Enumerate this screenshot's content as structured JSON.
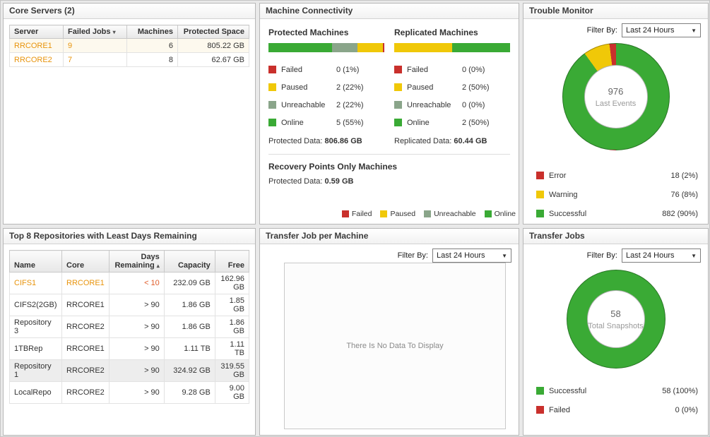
{
  "filter": {
    "label": "Filter By:",
    "value": "Last 24 Hours"
  },
  "core_servers": {
    "title": "Core Servers (2)",
    "headers": {
      "server": "Server",
      "failed_jobs": "Failed Jobs",
      "machines": "Machines",
      "protected_space": "Protected Space"
    },
    "rows": [
      {
        "server": "RRCORE1",
        "failed_jobs": "9",
        "machines": "6",
        "protected_space": "805.22 GB"
      },
      {
        "server": "RRCORE2",
        "failed_jobs": "7",
        "machines": "8",
        "protected_space": "62.67 GB"
      }
    ]
  },
  "machine_connectivity": {
    "title": "Machine Connectivity",
    "protected": {
      "heading": "Protected Machines",
      "bar": [
        {
          "pct": 55,
          "color": "#3aaa35"
        },
        {
          "pct": 22,
          "color": "#8aa58a"
        },
        {
          "pct": 22,
          "color": "#f0c808"
        },
        {
          "pct": 1,
          "color": "#c9302c"
        }
      ],
      "legend": [
        {
          "label": "Failed",
          "value": "0 (1%)",
          "color": "#c9302c"
        },
        {
          "label": "Paused",
          "value": "2 (22%)",
          "color": "#f0c808"
        },
        {
          "label": "Unreachable",
          "value": "2 (22%)",
          "color": "#8aa58a"
        },
        {
          "label": "Online",
          "value": "5 (55%)",
          "color": "#3aaa35"
        }
      ],
      "data_label": "Protected Data: ",
      "data_value": "806.86 GB"
    },
    "replicated": {
      "heading": "Replicated Machines",
      "bar": [
        {
          "pct": 50,
          "color": "#f0c808"
        },
        {
          "pct": 50,
          "color": "#3aaa35"
        }
      ],
      "legend": [
        {
          "label": "Failed",
          "value": "0 (0%)",
          "color": "#c9302c"
        },
        {
          "label": "Paused",
          "value": "2 (50%)",
          "color": "#f0c808"
        },
        {
          "label": "Unreachable",
          "value": "0 (0%)",
          "color": "#8aa58a"
        },
        {
          "label": "Online",
          "value": "2 (50%)",
          "color": "#3aaa35"
        }
      ],
      "data_label": "Replicated Data: ",
      "data_value": "60.44 GB"
    },
    "recovery_points": {
      "heading": "Recovery Points Only Machines",
      "data_label": "Protected Data: ",
      "data_value": "0.59 GB"
    },
    "bottom_legend": [
      {
        "label": "Failed",
        "color": "#c9302c"
      },
      {
        "label": "Paused",
        "color": "#f0c808"
      },
      {
        "label": "Unreachable",
        "color": "#8aa58a"
      },
      {
        "label": "Online",
        "color": "#3aaa35"
      }
    ]
  },
  "trouble_monitor": {
    "title": "Trouble Monitor",
    "donut": {
      "center_value": "976",
      "center_label": "Last Events",
      "segments": [
        {
          "label": "Successful",
          "pct": 90,
          "color": "#3aaa35"
        },
        {
          "label": "Warning",
          "pct": 8,
          "color": "#f0c808"
        },
        {
          "label": "Error",
          "pct": 2,
          "color": "#c9302c"
        }
      ]
    },
    "legend": [
      {
        "label": "Error",
        "value": "18 (2%)",
        "color": "#c9302c"
      },
      {
        "label": "Warning",
        "value": "76 (8%)",
        "color": "#f0c808"
      },
      {
        "label": "Successful",
        "value": "882 (90%)",
        "color": "#3aaa35"
      }
    ]
  },
  "repositories": {
    "title": "Top 8 Repositories with Least Days Remaining",
    "headers": {
      "name": "Name",
      "core": "Core",
      "days": "Days Remaining",
      "capacity": "Capacity",
      "free": "Free"
    },
    "rows": [
      {
        "name": "CIFS1",
        "core": "RRCORE1",
        "days": "< 10",
        "capacity": "232.09 GB",
        "free": "162.96 GB"
      },
      {
        "name": "CIFS2(2GB)",
        "core": "RRCORE1",
        "days": "> 90",
        "capacity": "1.86 GB",
        "free": "1.85 GB"
      },
      {
        "name": "Repository 3",
        "core": "RRCORE2",
        "days": "> 90",
        "capacity": "1.86 GB",
        "free": "1.86 GB"
      },
      {
        "name": "1TBRep",
        "core": "RRCORE1",
        "days": "> 90",
        "capacity": "1.11 TB",
        "free": "1.11 TB"
      },
      {
        "name": "Repository 1",
        "core": "RRCORE2",
        "days": "> 90",
        "capacity": "324.92 GB",
        "free": "319.55 GB"
      },
      {
        "name": "LocalRepo",
        "core": "RRCORE2",
        "days": "> 90",
        "capacity": "9.28 GB",
        "free": "9.00 GB"
      }
    ]
  },
  "transfer_job_per_machine": {
    "title": "Transfer Job per Machine",
    "empty_message": "There Is No Data To Display"
  },
  "transfer_jobs": {
    "title": "Transfer Jobs",
    "donut": {
      "center_value": "58",
      "center_label": "Total Snapshots",
      "segments": [
        {
          "label": "Successful",
          "pct": 100,
          "color": "#3aaa35"
        }
      ]
    },
    "legend": [
      {
        "label": "Successful",
        "value": "58 (100%)",
        "color": "#3aaa35"
      },
      {
        "label": "Failed",
        "value": "0 (0%)",
        "color": "#c9302c"
      }
    ]
  }
}
